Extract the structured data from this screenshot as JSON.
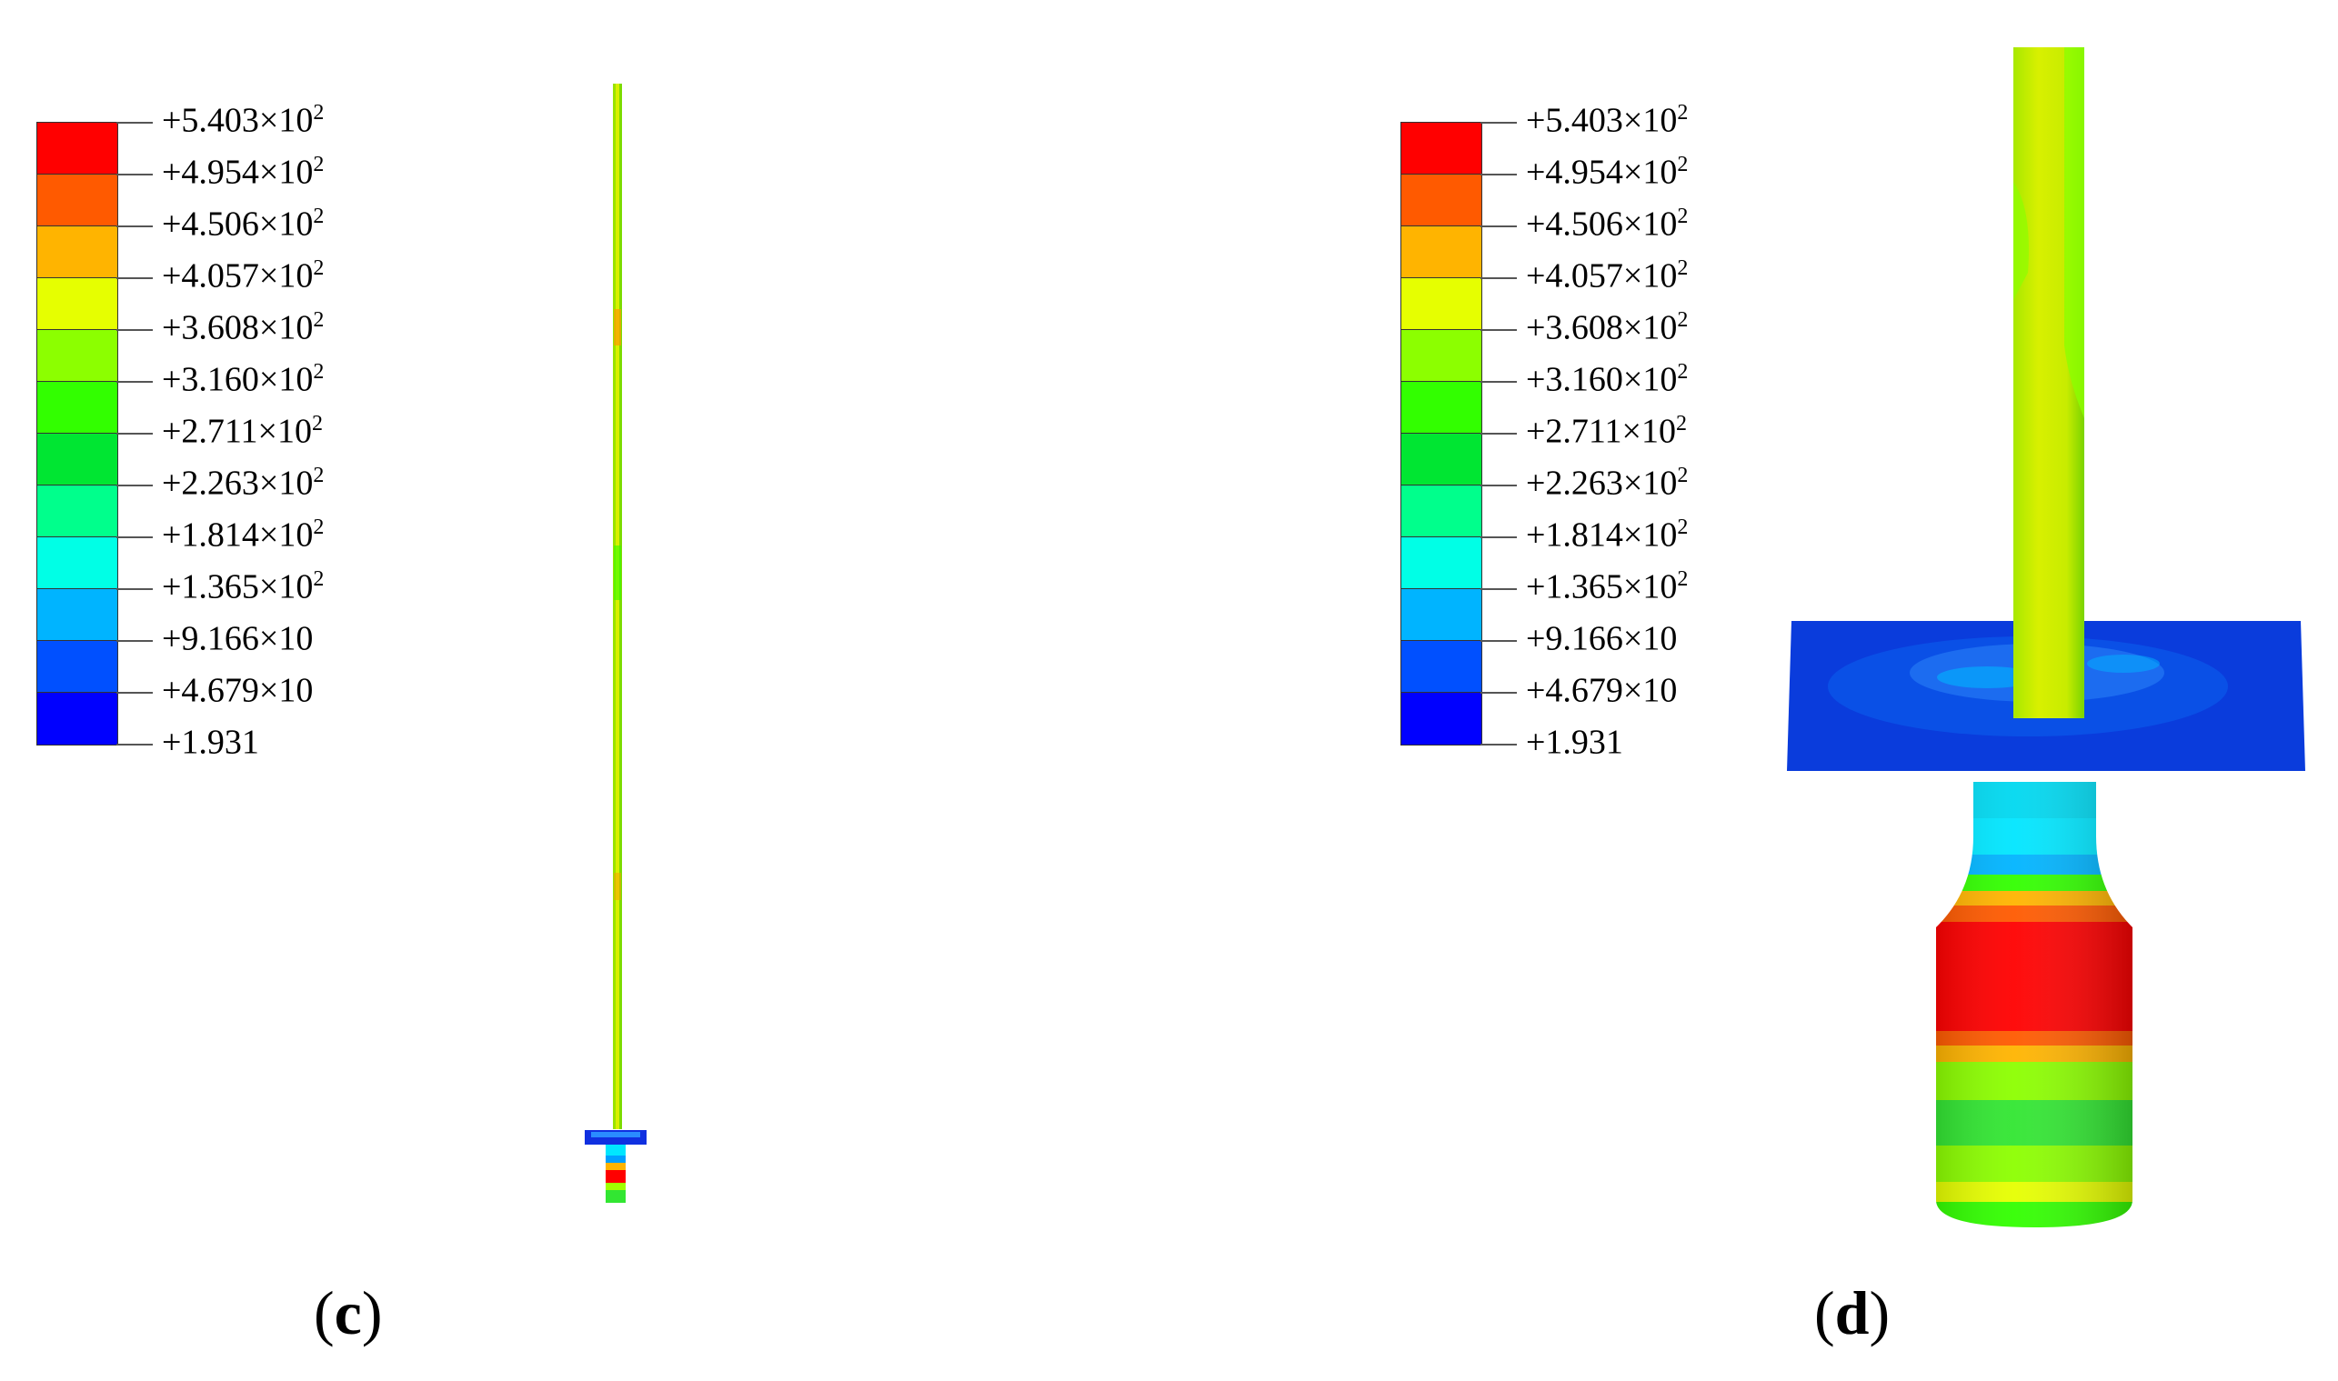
{
  "legend": {
    "colors": [
      "#ff0000",
      "#ff5a00",
      "#ffb400",
      "#e6ff00",
      "#8cff00",
      "#32ff00",
      "#00e632",
      "#00ff8c",
      "#00ffe6",
      "#00b4ff",
      "#0050ff",
      "#0000ff"
    ],
    "tick_values": [
      {
        "base": "+5.403×10",
        "exp": "2"
      },
      {
        "base": "+4.954×10",
        "exp": "2"
      },
      {
        "base": "+4.506×10",
        "exp": "2"
      },
      {
        "base": "+4.057×10",
        "exp": "2"
      },
      {
        "base": "+3.608×10",
        "exp": "2"
      },
      {
        "base": "+3.160×10",
        "exp": "2"
      },
      {
        "base": "+2.711×10",
        "exp": "2"
      },
      {
        "base": "+2.263×10",
        "exp": "2"
      },
      {
        "base": "+1.814×10",
        "exp": "2"
      },
      {
        "base": "+1.365×10",
        "exp": "2"
      },
      {
        "base": "+9.166×10",
        "exp": ""
      },
      {
        "base": "+4.679×10",
        "exp": ""
      },
      {
        "base": "+1.931",
        "exp": ""
      }
    ]
  },
  "panels": {
    "c": {
      "open": "(",
      "letter": "c",
      "close": ")"
    },
    "d": {
      "open": "(",
      "letter": "d",
      "close": ")"
    }
  }
}
